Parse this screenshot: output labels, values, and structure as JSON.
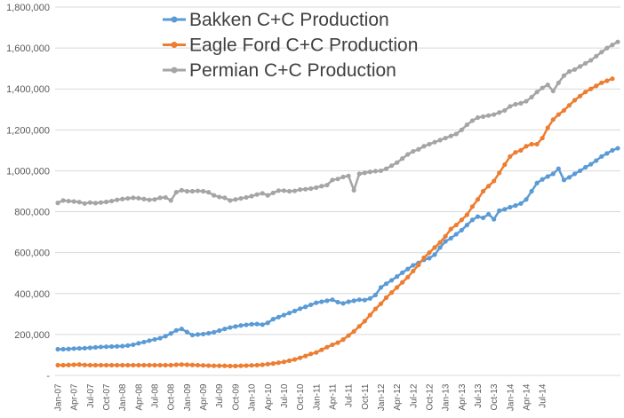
{
  "chart_data": {
    "type": "line",
    "title": "",
    "xlabel": "",
    "ylabel": "",
    "ylim": [
      0,
      1800000
    ],
    "yticks": [
      0,
      200000,
      400000,
      600000,
      800000,
      1000000,
      1200000,
      1400000,
      1600000,
      1800000
    ],
    "ytick_labels": [
      "-",
      "200,000",
      "400,000",
      "600,000",
      "800,000",
      "1,000,000",
      "1,200,000",
      "1,400,000",
      "1,600,000",
      "1,800,000"
    ],
    "x_start": "2007-01",
    "x_tick_labels": [
      "Jan-07",
      "Apr-07",
      "Jul-07",
      "Oct-07",
      "Jan-08",
      "Apr-08",
      "Jul-08",
      "Oct-08",
      "Jan-09",
      "Apr-09",
      "Jul-09",
      "Oct-09",
      "Jan-10",
      "Apr-10",
      "Jul-10",
      "Oct-10",
      "Jan-11",
      "Apr-11",
      "Jul-11",
      "Oct-11",
      "Jan-12",
      "Apr-12",
      "Jul-12",
      "Oct-12",
      "Jan-13",
      "Apr-13",
      "Jul-13",
      "Oct-13",
      "Jan-14",
      "Apr-14",
      "Jul-14"
    ],
    "grid": true,
    "legend_position": "top-center",
    "series": [
      {
        "name": "Bakken C+C Production",
        "color": "#5B9BD5",
        "values": [
          128000,
          128000,
          129000,
          131000,
          132000,
          133000,
          135000,
          137000,
          139000,
          140000,
          141000,
          142000,
          143000,
          146000,
          150000,
          157000,
          163000,
          170000,
          176000,
          182000,
          192000,
          205000,
          220000,
          227000,
          212000,
          197000,
          200000,
          202000,
          206000,
          211000,
          219000,
          227000,
          234000,
          239000,
          244000,
          247000,
          250000,
          251000,
          248000,
          257000,
          275000,
          285000,
          295000,
          305000,
          315000,
          326000,
          335000,
          345000,
          355000,
          360000,
          365000,
          370000,
          358000,
          352000,
          360000,
          365000,
          370000,
          368000,
          376000,
          393000,
          430000,
          448000,
          465000,
          483000,
          502000,
          520000,
          538000,
          550000,
          565000,
          573000,
          590000,
          625000,
          655000,
          670000,
          690000,
          710000,
          735000,
          760000,
          776000,
          770000,
          788000,
          763000,
          805000,
          812000,
          822000,
          830000,
          840000,
          860000,
          900000,
          940000,
          958000,
          972000,
          985000,
          1010000,
          955000,
          968000,
          985000,
          1000000,
          1017000,
          1032000,
          1050000,
          1070000,
          1085000,
          1100000,
          1110000
        ]
      },
      {
        "name": "Eagle Ford C+C Production",
        "color": "#ED7D31",
        "values": [
          50000,
          50000,
          51000,
          52000,
          53000,
          51000,
          50000,
          50000,
          50000,
          50000,
          50000,
          50000,
          50000,
          50000,
          50000,
          50000,
          50000,
          50000,
          50000,
          50000,
          50000,
          50000,
          52000,
          53000,
          52000,
          51000,
          50000,
          49000,
          48000,
          47000,
          47000,
          47000,
          46000,
          46000,
          47000,
          48000,
          49000,
          50000,
          52000,
          55000,
          58000,
          62000,
          66000,
          72000,
          78000,
          86000,
          95000,
          105000,
          112000,
          125000,
          138000,
          150000,
          160000,
          175000,
          195000,
          215000,
          240000,
          265000,
          295000,
          325000,
          350000,
          380000,
          405000,
          430000,
          455000,
          480000,
          510000,
          540000,
          575000,
          600000,
          625000,
          650000,
          680000,
          715000,
          735000,
          760000,
          785000,
          825000,
          860000,
          900000,
          925000,
          950000,
          990000,
          1030000,
          1070000,
          1090000,
          1100000,
          1120000,
          1130000,
          1130000,
          1160000,
          1210000,
          1250000,
          1275000,
          1295000,
          1320000,
          1345000,
          1365000,
          1385000,
          1400000,
          1415000,
          1430000,
          1440000,
          1450000
        ]
      },
      {
        "name": "Permian C+C Production",
        "color": "#A5A5A5",
        "values": [
          843000,
          855000,
          852000,
          850000,
          847000,
          840000,
          845000,
          842000,
          845000,
          848000,
          852000,
          858000,
          862000,
          865000,
          868000,
          866000,
          862000,
          858000,
          860000,
          868000,
          870000,
          855000,
          895000,
          905000,
          900000,
          900000,
          902000,
          900000,
          895000,
          880000,
          872000,
          868000,
          855000,
          860000,
          865000,
          870000,
          876000,
          884000,
          890000,
          880000,
          892000,
          903000,
          903000,
          900000,
          902000,
          908000,
          910000,
          913000,
          918000,
          925000,
          930000,
          955000,
          960000,
          970000,
          975000,
          905000,
          985000,
          990000,
          995000,
          998000,
          1000000,
          1010000,
          1025000,
          1040000,
          1060000,
          1080000,
          1095000,
          1105000,
          1120000,
          1130000,
          1140000,
          1150000,
          1160000,
          1170000,
          1180000,
          1200000,
          1225000,
          1245000,
          1260000,
          1265000,
          1270000,
          1275000,
          1285000,
          1295000,
          1315000,
          1325000,
          1330000,
          1340000,
          1360000,
          1385000,
          1405000,
          1420000,
          1390000,
          1430000,
          1465000,
          1485000,
          1495000,
          1510000,
          1525000,
          1540000,
          1560000,
          1580000,
          1600000,
          1615000,
          1630000
        ]
      }
    ]
  }
}
